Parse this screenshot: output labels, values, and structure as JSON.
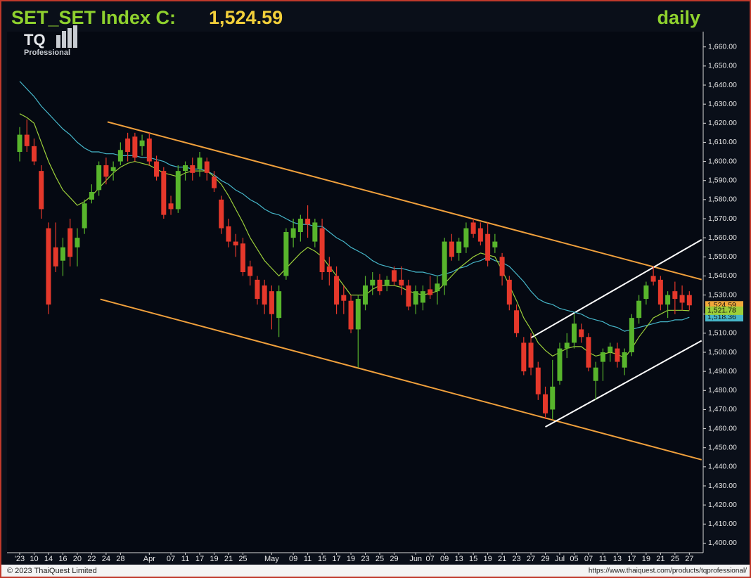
{
  "chart_data": {
    "type": "candlestick",
    "title": "SET_SET Index C:",
    "title_value": "1,524.59",
    "period": "daily",
    "logo": {
      "text": "TQ",
      "subtitle": "Professional"
    },
    "footer_left": "© 2023 ThaiQuest Limited",
    "footer_right": "https://www.thaiquest.com/products/tqprofessional/",
    "categories": [
      "'23",
      null,
      "10",
      null,
      "14",
      null,
      "16",
      null,
      "20",
      null,
      "22",
      null,
      "24",
      null,
      "28",
      null,
      null,
      null,
      "Apr",
      null,
      null,
      "07",
      null,
      "11",
      null,
      "17",
      null,
      "19",
      null,
      "21",
      null,
      "25",
      null,
      null,
      null,
      "May",
      null,
      null,
      "09",
      null,
      "11",
      null,
      "15",
      null,
      "17",
      null,
      "19",
      null,
      "23",
      null,
      "25",
      null,
      "29",
      null,
      null,
      "Jun",
      null,
      "07",
      null,
      "09",
      null,
      "13",
      null,
      "15",
      null,
      "19",
      null,
      "21",
      null,
      "23",
      null,
      "27",
      null,
      "29",
      null,
      "Jul",
      null,
      "05",
      null,
      "07",
      null,
      "11",
      null,
      "13",
      null,
      "17",
      null,
      "19",
      null,
      "21",
      null,
      "25",
      null,
      "27"
    ],
    "open": [
      1605,
      1614,
      1608,
      1595,
      1565,
      1555,
      1548,
      1565,
      1555,
      1565,
      1580,
      1585,
      1598,
      1595,
      1600,
      1612,
      1613,
      1608,
      1612,
      1600,
      1595,
      1578,
      1575,
      1595,
      1598,
      1596,
      1600,
      1592,
      1580,
      1566,
      1558,
      1557,
      1545,
      1538,
      1535,
      1532,
      1518,
      1540,
      1560,
      1563,
      1570,
      1558,
      1565,
      1545,
      1540,
      1530,
      1527,
      1512,
      1525,
      1535,
      1538,
      1535,
      1543,
      1538,
      1535,
      1525,
      1526,
      1533,
      1532,
      1535,
      1558,
      1552,
      1555,
      1568,
      1565,
      1562,
      1555,
      1550,
      1538,
      1522,
      1505,
      1505,
      1492,
      1478,
      1470,
      1485,
      1502,
      1505,
      1512,
      1508,
      1485,
      1495,
      1500,
      1502,
      1492,
      1500,
      1518,
      1528,
      1540,
      1538,
      1525,
      1532,
      1530,
      1530
    ],
    "high": [
      1618,
      1622,
      1612,
      1598,
      1568,
      1568,
      1560,
      1570,
      1565,
      1580,
      1588,
      1600,
      1602,
      1600,
      1610,
      1615,
      1615,
      1614,
      1615,
      1603,
      1597,
      1582,
      1598,
      1600,
      1602,
      1605,
      1602,
      1595,
      1582,
      1570,
      1562,
      1560,
      1548,
      1540,
      1538,
      1535,
      1535,
      1565,
      1570,
      1572,
      1577,
      1570,
      1570,
      1550,
      1545,
      1535,
      1530,
      1530,
      1540,
      1542,
      1541,
      1540,
      1545,
      1545,
      1538,
      1535,
      1535,
      1540,
      1540,
      1560,
      1562,
      1560,
      1568,
      1570,
      1568,
      1568,
      1562,
      1552,
      1540,
      1525,
      1508,
      1510,
      1495,
      1482,
      1496,
      1505,
      1510,
      1520,
      1515,
      1510,
      1495,
      1502,
      1505,
      1505,
      1502,
      1520,
      1530,
      1537,
      1545,
      1540,
      1532,
      1537,
      1535,
      1532
    ],
    "low": [
      1600,
      1605,
      1598,
      1570,
      1520,
      1542,
      1540,
      1545,
      1545,
      1562,
      1578,
      1582,
      1588,
      1590,
      1598,
      1600,
      1600,
      1603,
      1598,
      1590,
      1570,
      1572,
      1573,
      1590,
      1590,
      1592,
      1590,
      1584,
      1562,
      1555,
      1550,
      1540,
      1535,
      1525,
      1520,
      1512,
      1508,
      1538,
      1555,
      1558,
      1560,
      1555,
      1538,
      1535,
      1520,
      1520,
      1510,
      1492,
      1522,
      1530,
      1530,
      1532,
      1535,
      1530,
      1522,
      1520,
      1522,
      1528,
      1525,
      1530,
      1548,
      1548,
      1552,
      1560,
      1556,
      1545,
      1552,
      1535,
      1522,
      1508,
      1488,
      1488,
      1475,
      1465,
      1465,
      1483,
      1497,
      1502,
      1505,
      1490,
      1475,
      1485,
      1495,
      1492,
      1488,
      1498,
      1515,
      1525,
      1535,
      1522,
      1518,
      1520,
      1522,
      1522
    ],
    "close": [
      1614,
      1608,
      1600,
      1575,
      1525,
      1545,
      1555,
      1550,
      1560,
      1578,
      1584,
      1598,
      1592,
      1597,
      1606,
      1605,
      1602,
      1611,
      1600,
      1592,
      1572,
      1575,
      1595,
      1598,
      1594,
      1602,
      1594,
      1586,
      1565,
      1558,
      1556,
      1542,
      1540,
      1528,
      1525,
      1520,
      1532,
      1563,
      1565,
      1570,
      1567,
      1568,
      1542,
      1542,
      1525,
      1527,
      1512,
      1528,
      1535,
      1538,
      1532,
      1538,
      1537,
      1535,
      1524,
      1532,
      1532,
      1530,
      1536,
      1558,
      1550,
      1558,
      1565,
      1562,
      1558,
      1548,
      1558,
      1540,
      1525,
      1510,
      1490,
      1492,
      1478,
      1468,
      1482,
      1502,
      1505,
      1515,
      1508,
      1492,
      1492,
      1500,
      1503,
      1495,
      1500,
      1518,
      1527,
      1535,
      1537,
      1525,
      1530,
      1528,
      1526,
      1524.59
    ],
    "last_label": "1,524.59",
    "up_color": "#58b52c",
    "down_color": "#e5382b",
    "last_color": "#f2a93b",
    "series": [
      {
        "color": "#46b6c9",
        "last_label": "1,518.36",
        "values": [
          1642,
          1638,
          1634,
          1629,
          1625,
          1621,
          1617,
          1614,
          1610,
          1607,
          1605,
          1605,
          1604,
          1604,
          1603,
          1603,
          1603,
          1602,
          1602,
          1601,
          1600,
          1598,
          1597,
          1597,
          1596,
          1596,
          1595,
          1593,
          1590,
          1588,
          1585,
          1583,
          1580,
          1578,
          1575,
          1573,
          1572,
          1570,
          1568,
          1567,
          1567,
          1566,
          1566,
          1563,
          1560,
          1558,
          1555,
          1553,
          1551,
          1548,
          1546,
          1545,
          1544,
          1544,
          1543,
          1542,
          1542,
          1541,
          1540,
          1541,
          1542,
          1544,
          1545,
          1547,
          1548,
          1550,
          1548,
          1547,
          1545,
          1541,
          1537,
          1532,
          1528,
          1526,
          1525,
          1523,
          1522,
          1521,
          1520,
          1518,
          1517,
          1516,
          1514,
          1513,
          1511,
          1512,
          1513,
          1514,
          1515,
          1516,
          1516,
          1517,
          1517,
          1518.36
        ]
      },
      {
        "color": "#9ccf3a",
        "last_label": "1,521.78",
        "values": [
          1625,
          1623,
          1620,
          1610,
          1600,
          1592,
          1585,
          1581,
          1577,
          1579,
          1582,
          1586,
          1590,
          1594,
          1597,
          1599,
          1600,
          1599,
          1598,
          1596,
          1594,
          1593,
          1592,
          1594,
          1595,
          1595,
          1595,
          1592,
          1588,
          1582,
          1575,
          1568,
          1560,
          1554,
          1548,
          1544,
          1540,
          1544,
          1548,
          1552,
          1555,
          1553,
          1550,
          1545,
          1540,
          1535,
          1530,
          1530,
          1530,
          1533,
          1535,
          1535,
          1535,
          1534,
          1532,
          1531,
          1530,
          1531,
          1532,
          1536,
          1540,
          1544,
          1547,
          1550,
          1552,
          1551,
          1550,
          1543,
          1535,
          1527,
          1518,
          1512,
          1505,
          1501,
          1498,
          1500,
          1502,
          1503,
          1503,
          1500,
          1498,
          1499,
          1500,
          1499,
          1497,
          1502,
          1508,
          1513,
          1518,
          1520,
          1522,
          1522,
          1522,
          1521.78
        ]
      }
    ],
    "trendlines": [
      {
        "color": "#f0a03c",
        "from": [
          12.2,
          1620.7
        ],
        "to": [
          94.7,
          1538.1
        ]
      },
      {
        "color": "#f0a03c",
        "from": [
          11.2,
          1527.8
        ],
        "to": [
          94.7,
          1443.7
        ]
      },
      {
        "color": "#ffffff",
        "from": [
          71,
          1507.6
        ],
        "to": [
          94.7,
          1559.0
        ]
      },
      {
        "color": "#ffffff",
        "from": [
          73,
          1460.9
        ],
        "to": [
          94.7,
          1506.1
        ]
      }
    ],
    "ylim": [
      1395,
      1668
    ],
    "yticks": [
      {
        "value": 1400,
        "label": "1,400.00"
      },
      {
        "value": 1410,
        "label": "1,410.00"
      },
      {
        "value": 1420,
        "label": "1,420.00"
      },
      {
        "value": 1430,
        "label": "1,430.00"
      },
      {
        "value": 1440,
        "label": "1,440.00"
      },
      {
        "value": 1450,
        "label": "1,450.00"
      },
      {
        "value": 1460,
        "label": "1,460.00"
      },
      {
        "value": 1470,
        "label": "1,470.00"
      },
      {
        "value": 1480,
        "label": "1,480.00"
      },
      {
        "value": 1490,
        "label": "1,490.00"
      },
      {
        "value": 1500,
        "label": "1,500.00"
      },
      {
        "value": 1510,
        "label": "1,510.00"
      },
      {
        "value": 1520,
        "label": "1,520.00"
      },
      {
        "value": 1530,
        "label": "1,530.00"
      },
      {
        "value": 1540,
        "label": "1,540.00"
      },
      {
        "value": 1550,
        "label": "1,550.00"
      },
      {
        "value": 1560,
        "label": "1,560.00"
      },
      {
        "value": 1570,
        "label": "1,570.00"
      },
      {
        "value": 1580,
        "label": "1,580.00"
      },
      {
        "value": 1590,
        "label": "1,590.00"
      },
      {
        "value": 1600,
        "label": "1,600.00"
      },
      {
        "value": 1610,
        "label": "1,610.00"
      },
      {
        "value": 1620,
        "label": "1,620.00"
      },
      {
        "value": 1630,
        "label": "1,630.00"
      },
      {
        "value": 1640,
        "label": "1,640.00"
      },
      {
        "value": 1650,
        "label": "1,650.00"
      },
      {
        "value": 1660,
        "label": "1,660.00"
      }
    ]
  }
}
